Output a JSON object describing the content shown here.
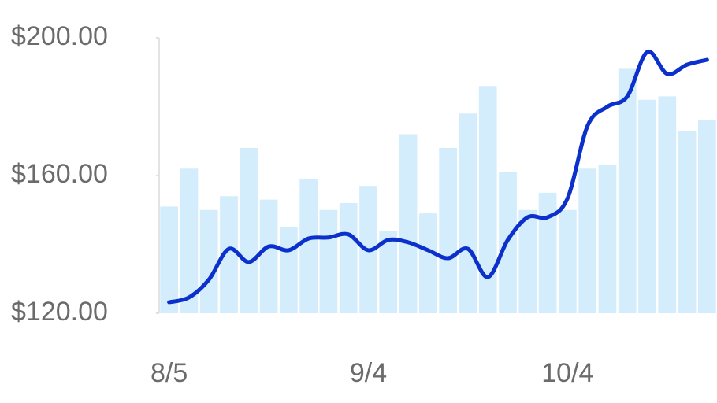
{
  "chart_data": {
    "type": "bar-line",
    "categories": [
      "8/5",
      null,
      null,
      null,
      null,
      null,
      null,
      null,
      null,
      null,
      "9/4",
      null,
      null,
      null,
      null,
      null,
      null,
      null,
      null,
      null,
      "10/4",
      null,
      null,
      null,
      null,
      null,
      null,
      null
    ],
    "series": [
      {
        "type": "bar",
        "color": "#d4edfc",
        "values": [
          151,
          162,
          150,
          154,
          168,
          153,
          145,
          159,
          150,
          152,
          157,
          144,
          172,
          149,
          168,
          178,
          186,
          161,
          150,
          155,
          150,
          162,
          163,
          191,
          182,
          183,
          173,
          176
        ]
      },
      {
        "type": "line",
        "color": "#0b30cc",
        "values": [
          123.2,
          124.6,
          129.8,
          138.7,
          134.9,
          139.4,
          138.3,
          141.7,
          142,
          142.9,
          138.3,
          141.3,
          140.6,
          138.3,
          136,
          138.7,
          130.5,
          141.3,
          147.9,
          147.9,
          153.4,
          174.4,
          180,
          183,
          195.9,
          189.5,
          192.2,
          193.6
        ]
      }
    ],
    "ylim": [
      120,
      200
    ],
    "yticks": [
      {
        "value": 120,
        "label": "$120.00"
      },
      {
        "value": 160,
        "label": "$160.00"
      },
      {
        "value": 200,
        "label": "$200.00"
      }
    ]
  }
}
